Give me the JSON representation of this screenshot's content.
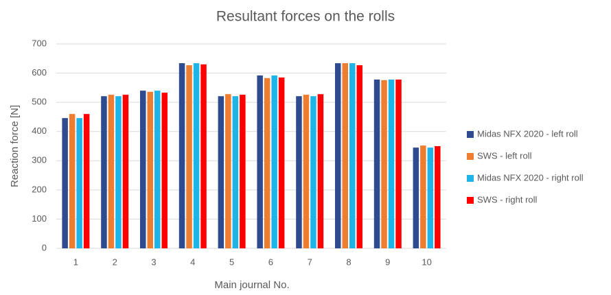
{
  "chart_data": {
    "type": "bar",
    "title": "Resultant forces on the rolls",
    "x_label": "Main journal No.",
    "y_label": "Reaction force [N]",
    "categories": [
      "1",
      "2",
      "3",
      "4",
      "5",
      "6",
      "7",
      "8",
      "9",
      "10"
    ],
    "series": [
      {
        "name": "Midas NFX 2020 - left roll",
        "color": "#2f4b8f",
        "values": [
          446,
          521,
          540,
          634,
          521,
          592,
          521,
          634,
          578,
          345
        ]
      },
      {
        "name": "SWS - left roll",
        "color": "#ed7d31",
        "values": [
          460,
          526,
          536,
          627,
          528,
          583,
          526,
          634,
          576,
          352
        ]
      },
      {
        "name": "Midas NFX 2020 - right roll",
        "color": "#1fb4e8",
        "values": [
          446,
          521,
          540,
          634,
          521,
          592,
          521,
          634,
          578,
          345
        ]
      },
      {
        "name": "SWS - right roll",
        "color": "#ff0000",
        "values": [
          460,
          526,
          533,
          630,
          526,
          585,
          528,
          627,
          578,
          350
        ]
      }
    ],
    "ylim": [
      0,
      700
    ],
    "yticks": [
      0,
      100,
      200,
      300,
      400,
      500,
      600,
      700
    ],
    "grid": true,
    "legend": "right"
  }
}
